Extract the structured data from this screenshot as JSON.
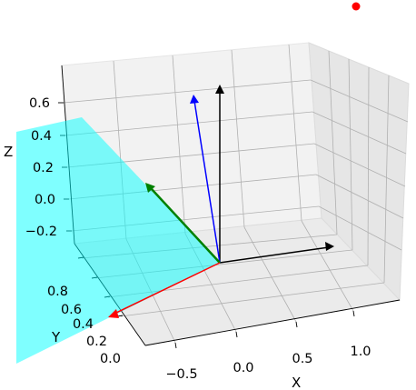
{
  "chart_data": {
    "type": "3d-quiver",
    "projection": "3d",
    "title": "",
    "xlabel": "X",
    "ylabel": "Y",
    "zlabel": "Z",
    "x_ticks": [
      "−0.5",
      "0.0",
      "0.5",
      "1.0"
    ],
    "y_ticks": [
      "0.0",
      "0.2",
      "0.4",
      "0.6",
      "0.8"
    ],
    "z_ticks": [
      "−0.2",
      "0.0",
      "0.2",
      "0.4",
      "0.6"
    ],
    "xlim": [
      -0.75,
      1.25
    ],
    "ylim": [
      -0.1,
      0.95
    ],
    "zlim": [
      -0.35,
      0.7
    ],
    "grid": true,
    "origin": [
      0,
      0,
      0
    ],
    "vectors": [
      {
        "color": "#000000",
        "label": "x-axis arrow",
        "dx": 1.0,
        "dy": 0.0,
        "dz": 0.0
      },
      {
        "color": "#000000",
        "label": "z-axis arrow",
        "dx": 0.0,
        "dy": 0.0,
        "dz": 0.55
      },
      {
        "color": "#0000ff",
        "label": "blue vector",
        "dx": 0.0,
        "dy": 0.15,
        "dz": 0.55
      },
      {
        "color": "#008000",
        "label": "green vector",
        "dx": -0.55,
        "dy": 0.2,
        "dz": 0.2
      },
      {
        "color": "#ff0000",
        "label": "red vector",
        "dx": -0.6,
        "dy": 0.45,
        "dz": -0.35
      }
    ],
    "plane": {
      "color": "#00ffff",
      "alpha": 0.5,
      "description": "cyan plane through origin"
    },
    "points": [
      {
        "color": "#ff0000",
        "x": 1.45,
        "y": 0.0,
        "z": 1.05
      }
    ]
  }
}
